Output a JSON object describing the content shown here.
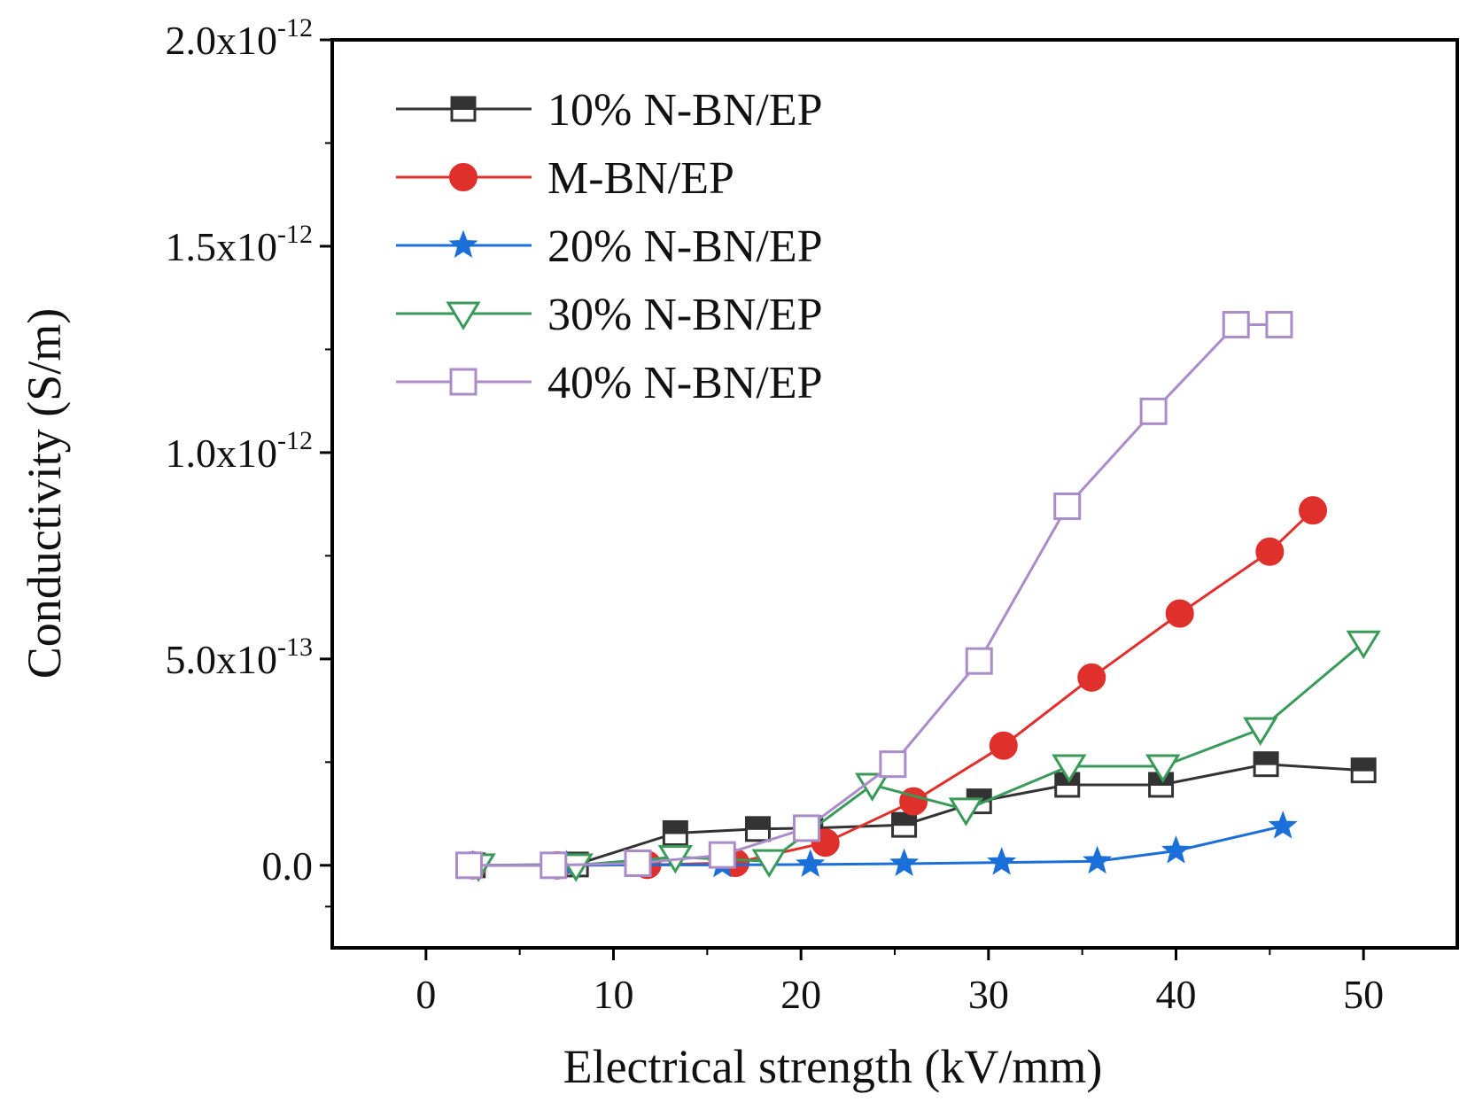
{
  "chart_data": {
    "type": "line",
    "title": "",
    "xlabel": "Electrical strength (kV/mm)",
    "ylabel": "Conductivity (S/m)",
    "xlim": [
      -5,
      55
    ],
    "ylim": [
      -2e-13,
      2e-12
    ],
    "x_ticks": [
      0,
      10,
      20,
      30,
      40,
      50
    ],
    "x_tick_labels": [
      "0",
      "10",
      "20",
      "30",
      "40",
      "50"
    ],
    "y_ticks": [
      0,
      5e-13,
      1e-12,
      1.5e-12,
      2e-12
    ],
    "y_tick_labels": [
      {
        "mantissa": "0.0",
        "exponent": ""
      },
      {
        "mantissa": "5.0x10",
        "exponent": "-13"
      },
      {
        "mantissa": "1.0x10",
        "exponent": "-12"
      },
      {
        "mantissa": "1.5x10",
        "exponent": "-12"
      },
      {
        "mantissa": "2.0x10",
        "exponent": "-12"
      }
    ],
    "grid": false,
    "legend_position": "top-left",
    "series": [
      {
        "name": "10% N-BN/EP",
        "color": "#333333",
        "marker": "square-filled-top",
        "x": [
          2.5,
          8,
          13.3,
          17.7,
          20.5,
          25.5,
          29.5,
          34.2,
          39.2,
          44.8,
          50
        ],
        "y": [
          0,
          2e-15,
          7.8e-14,
          8.8e-14,
          9e-14,
          9.8e-14,
          1.55e-13,
          1.95e-13,
          1.95e-13,
          2.45e-13,
          2.3e-13
        ]
      },
      {
        "name": "M-BN/EP",
        "color": "#e0302c",
        "marker": "circle-filled",
        "x": [
          2.5,
          7,
          11.8,
          16.5,
          21.3,
          26,
          30.8,
          35.5,
          40.2,
          45,
          47.3
        ],
        "y": [
          0,
          0,
          1e-15,
          6e-15,
          5.5e-14,
          1.55e-13,
          2.9e-13,
          4.55e-13,
          6.1e-13,
          7.6e-13,
          8.6e-13
        ]
      },
      {
        "name": "20% N-BN/EP",
        "color": "#1a6fd8",
        "marker": "star-filled",
        "x": [
          2.5,
          7.5,
          11.5,
          15.8,
          20.5,
          25.5,
          30.7,
          35.8,
          40,
          45.7
        ],
        "y": [
          0,
          0,
          1e-15,
          1e-15,
          2e-15,
          4e-15,
          7e-15,
          1e-14,
          3.5e-14,
          9.5e-14
        ]
      },
      {
        "name": "30% N-BN/EP",
        "color": "#3a9a5a",
        "marker": "triangle-down-open",
        "x": [
          2.8,
          8,
          13.3,
          18.3,
          23.8,
          28.8,
          34.3,
          39.3,
          44.5,
          50
        ],
        "y": [
          0,
          0,
          2e-14,
          1e-14,
          1.95e-13,
          1.35e-13,
          2.4e-13,
          2.4e-13,
          3.3e-13,
          5.4e-13
        ]
      },
      {
        "name": "40% N-BN/EP",
        "color": "#a98cc8",
        "marker": "square-open",
        "x": [
          2.3,
          6.8,
          11.3,
          15.8,
          20.3,
          24.9,
          29.5,
          34.2,
          38.8,
          43.2,
          45.5
        ],
        "y": [
          0,
          0,
          5e-15,
          2.5e-14,
          9e-14,
          2.45e-13,
          4.95e-13,
          8.7e-13,
          1.1e-12,
          1.31e-12,
          1.31e-12
        ]
      }
    ]
  }
}
